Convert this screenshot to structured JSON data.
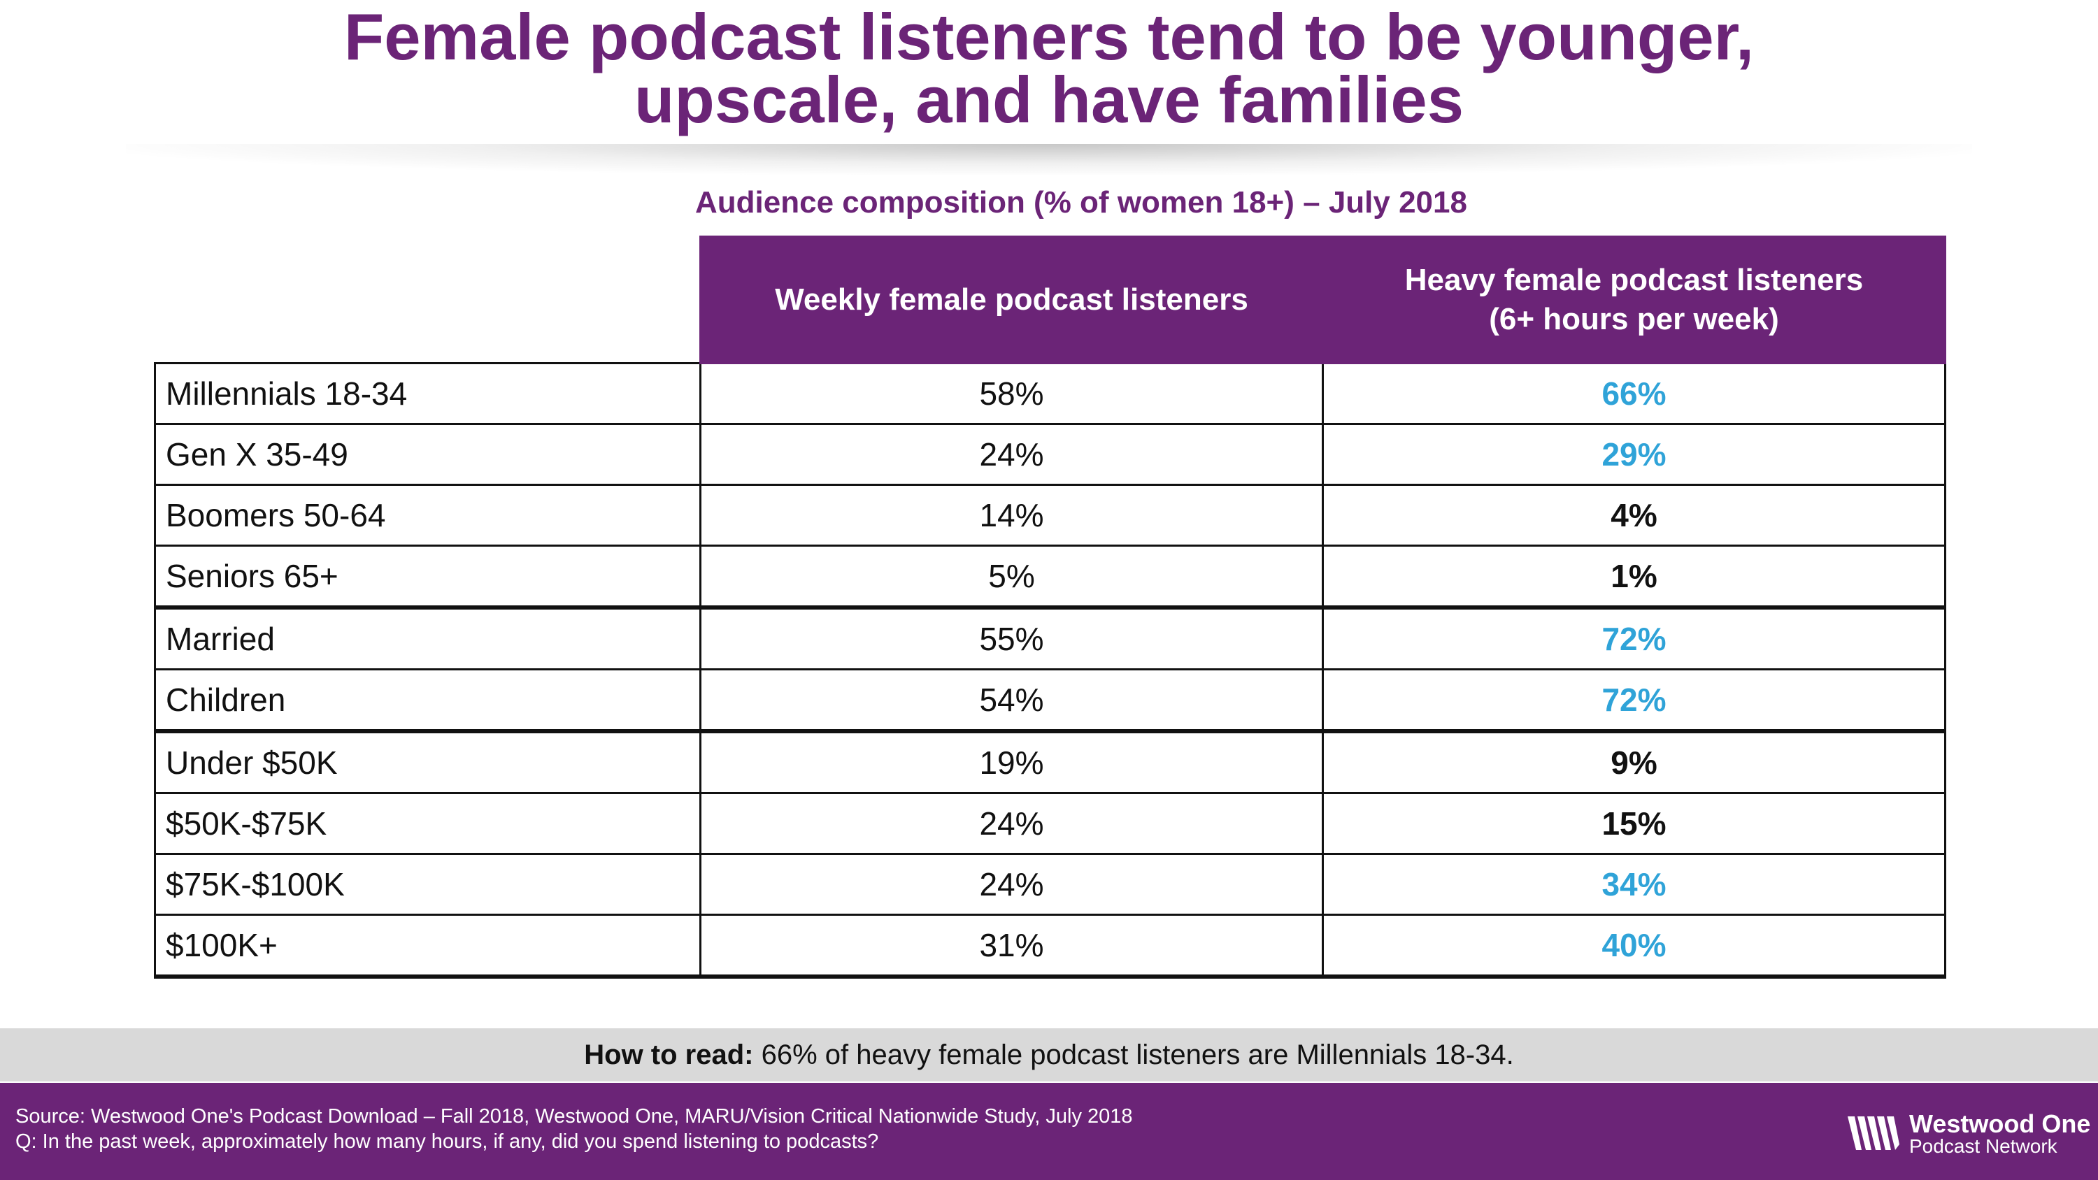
{
  "title": {
    "line1": "Female podcast listeners tend to be younger,",
    "line2": "upscale, and have families"
  },
  "chart_data": {
    "type": "table",
    "title": "Audience composition (% of women 18+) – July 2018",
    "columns": [
      "Weekly female podcast listeners",
      "Heavy female podcast listeners",
      "(6+ hours per week)"
    ],
    "rows": [
      {
        "label": "Millennials 18-34",
        "weekly": "58%",
        "heavy": "66%",
        "highlight": true
      },
      {
        "label": "Gen X 35-49",
        "weekly": "24%",
        "heavy": "29%",
        "highlight": true
      },
      {
        "label": "Boomers 50-64",
        "weekly": "14%",
        "heavy": "4%",
        "highlight": false
      },
      {
        "label": "Seniors 65+",
        "weekly": "5%",
        "heavy": "1%",
        "highlight": false
      },
      {
        "label": "Married",
        "weekly": "55%",
        "heavy": "72%",
        "highlight": true
      },
      {
        "label": "Children",
        "weekly": "54%",
        "heavy": "72%",
        "highlight": true
      },
      {
        "label": "Under $50K",
        "weekly": "19%",
        "heavy": "9%",
        "highlight": false
      },
      {
        "label": "$50K-$75K",
        "weekly": "24%",
        "heavy": "15%",
        "highlight": false
      },
      {
        "label": "$75K-$100K",
        "weekly": "24%",
        "heavy": "34%",
        "highlight": true
      },
      {
        "label": "$100K+",
        "weekly": "31%",
        "heavy": "40%",
        "highlight": true
      }
    ],
    "group_breaks_before_row": [
      4,
      6
    ]
  },
  "how_to_read": {
    "label": "How to read:",
    "text": " 66% of heavy female podcast listeners are Millennials 18-34."
  },
  "footer": {
    "source": "Source: Westwood One's Podcast Download – Fall 2018, Westwood One, MARU/Vision Critical Nationwide Study, July 2018",
    "question": "Q: In the past week, approximately how many hours, if any, did you spend listening to podcasts?"
  },
  "logo": {
    "name": "Westwood One",
    "sub": "Podcast Network"
  },
  "colors": {
    "brand_purple": "#6b2477",
    "highlight_blue": "#2fa3d8",
    "text": "#111111",
    "band_gray": "#d9d9d9"
  },
  "icons": [
    "westwood-one-logo-icon"
  ]
}
